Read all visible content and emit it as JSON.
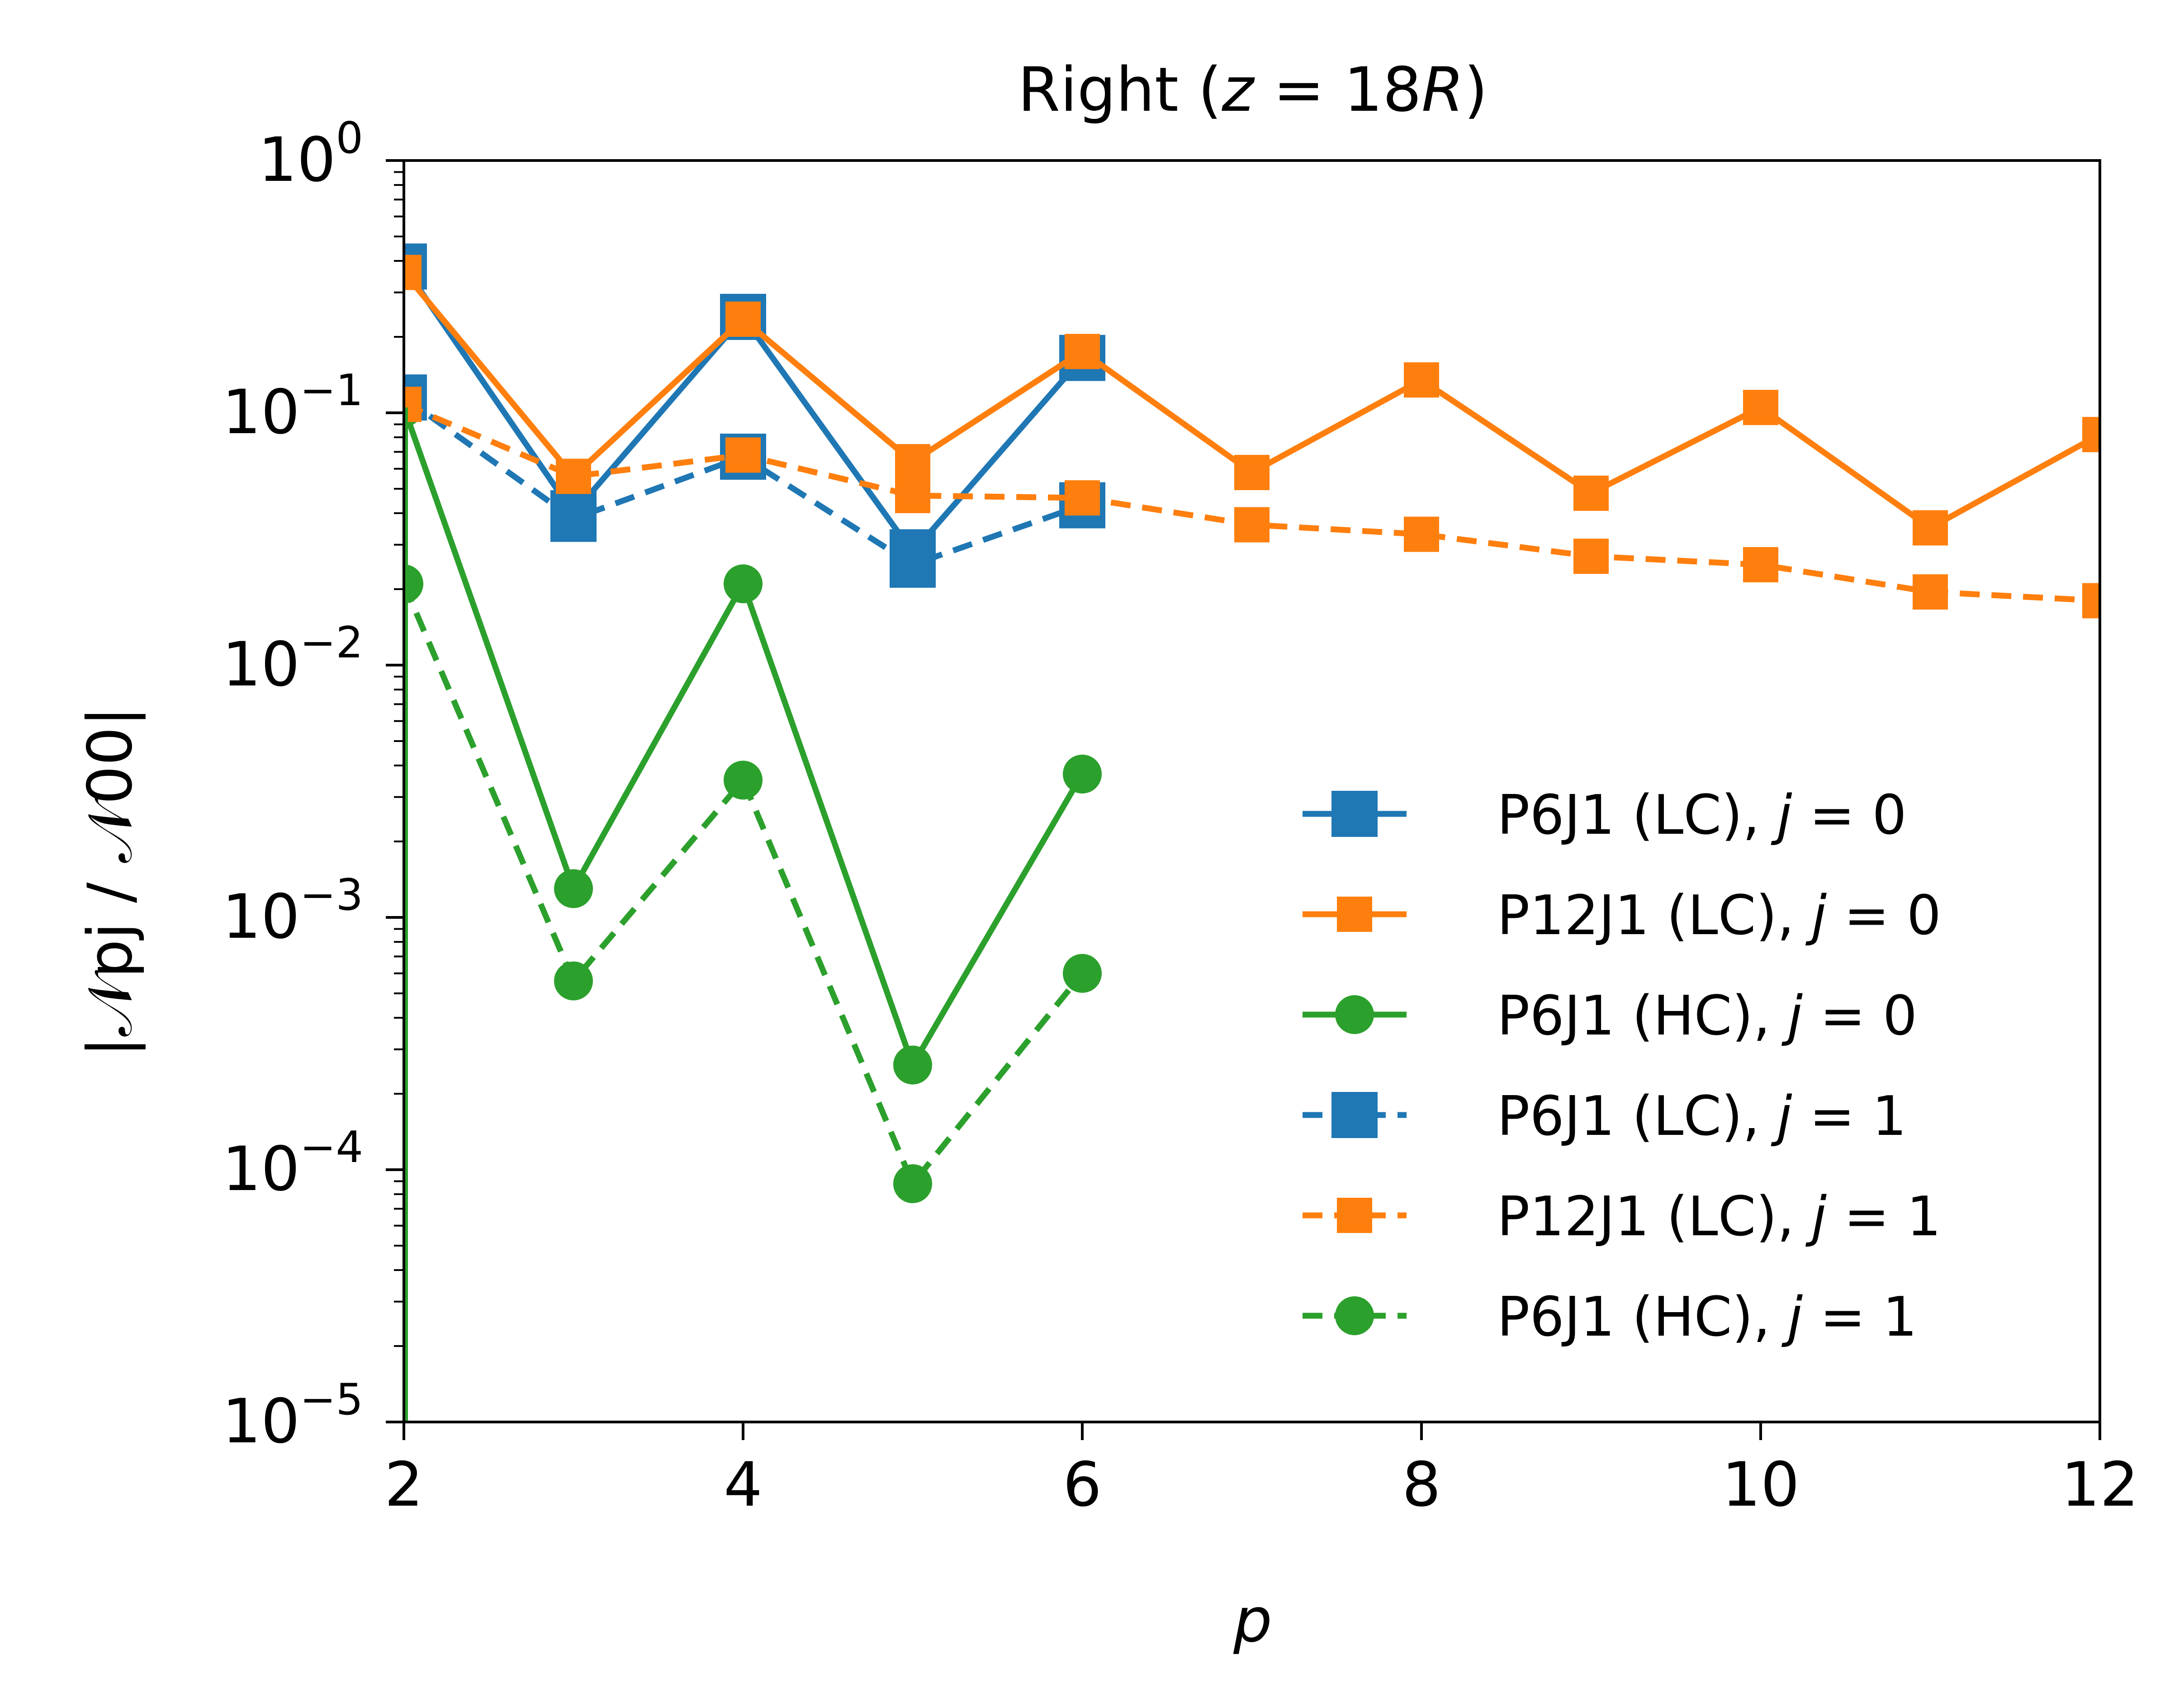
{
  "chart_data": {
    "type": "line",
    "title": "Right (z = 18R)",
    "title_parts": {
      "prefix": "Right (",
      "var": "z",
      "eq": " = 18",
      "var2": "R",
      "suffix": ")"
    },
    "xlabel": "p",
    "ylabel": "|𝒩pj / 𝒩00|",
    "xlim": [
      2,
      12
    ],
    "ylim": [
      1e-05,
      1
    ],
    "yscale": "log",
    "xticks": [
      2,
      4,
      6,
      8,
      10,
      12
    ],
    "xtick_labels": [
      "2",
      "4",
      "6",
      "8",
      "10",
      "12"
    ],
    "yticks": [
      1e-05,
      0.0001,
      0.001,
      0.01,
      0.1,
      1
    ],
    "ytick_labels": [
      {
        "base": "10",
        "exp": "−5"
      },
      {
        "base": "10",
        "exp": "−4"
      },
      {
        "base": "10",
        "exp": "−3"
      },
      {
        "base": "10",
        "exp": "−2"
      },
      {
        "base": "10",
        "exp": "−1"
      },
      {
        "base": "10",
        "exp": "0"
      }
    ],
    "grid": false,
    "legend_position": "center-right",
    "series": [
      {
        "name": "P6J1 (LC), j = 0",
        "label": "P6J1 (LC), ",
        "j": "j",
        "jval": " = 0",
        "color": "#1f77b4",
        "dash": "solid",
        "marker": "square-large",
        "x": [
          2,
          3,
          4,
          5,
          6
        ],
        "values": [
          0.38,
          0.04,
          0.24,
          0.028,
          0.165
        ]
      },
      {
        "name": "P12J1 (LC), j = 0",
        "label": "P12J1 (LC), ",
        "j": "j",
        "jval": " = 0",
        "color": "#ff7f0e",
        "dash": "solid",
        "marker": "square",
        "x": [
          2,
          3,
          4,
          5,
          6,
          7,
          8,
          9,
          10,
          11,
          12
        ],
        "values": [
          0.36,
          0.056,
          0.235,
          0.064,
          0.175,
          0.058,
          0.135,
          0.048,
          0.105,
          0.035,
          0.082
        ]
      },
      {
        "name": "P6J1 (HC), j = 0",
        "label": "P6J1 (HC), ",
        "j": "j",
        "jval": " = 0",
        "color": "#2ca02c",
        "dash": "solid",
        "marker": "circle",
        "x": [
          2,
          3,
          4,
          5,
          6
        ],
        "values": [
          0.105,
          0.0013,
          0.021,
          0.00026,
          0.0037
        ]
      },
      {
        "name": "P6J1 (LC), j = 1",
        "label": "P6J1 (LC), ",
        "j": "j",
        "jval": " = 1",
        "color": "#1f77b4",
        "dash": "dashed",
        "marker": "square-large",
        "x": [
          2,
          3,
          4,
          5,
          6
        ],
        "values": [
          0.115,
          0.038,
          0.067,
          0.025,
          0.043
        ]
      },
      {
        "name": "P12J1 (LC), j = 1",
        "label": "P12J1 (LC), ",
        "j": "j",
        "jval": " = 1",
        "color": "#ff7f0e",
        "dash": "dashed",
        "marker": "square",
        "x": [
          2,
          3,
          4,
          5,
          6,
          7,
          8,
          9,
          10,
          11,
          12
        ],
        "values": [
          0.108,
          0.056,
          0.068,
          0.047,
          0.046,
          0.036,
          0.033,
          0.027,
          0.025,
          0.0195,
          0.018
        ]
      },
      {
        "name": "P6J1 (HC), j = 1",
        "label": "P6J1 (HC), ",
        "j": "j",
        "jval": " = 1",
        "color": "#2ca02c",
        "dash": "dashed",
        "marker": "circle",
        "x": [
          2,
          3,
          4,
          5,
          6
        ],
        "values": [
          0.021,
          0.00056,
          0.0035,
          8.8e-05,
          0.0006
        ]
      }
    ]
  }
}
